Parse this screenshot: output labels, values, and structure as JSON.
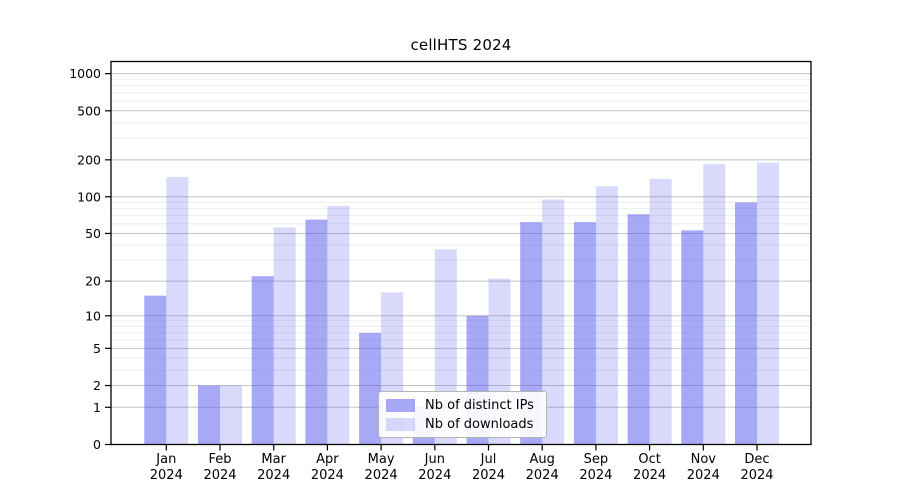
{
  "chart_data": {
    "type": "bar",
    "title": "cellHTS 2024",
    "xlabel": "",
    "ylabel": "",
    "categories": [
      "Jan",
      "Feb",
      "Mar",
      "Apr",
      "May",
      "Jun",
      "Jul",
      "Aug",
      "Sep",
      "Oct",
      "Nov",
      "Dec"
    ],
    "x_sub_label": "2024",
    "series": [
      {
        "name": "Nb of distinct IPs",
        "color": "rgba(80,84,240,0.50)",
        "values": [
          15,
          2,
          22,
          65,
          7,
          1,
          10,
          62,
          62,
          72,
          53,
          90
        ]
      },
      {
        "name": "Nb of downloads",
        "color": "rgba(80,84,240,0.22)",
        "values": [
          145,
          2,
          56,
          84,
          16,
          37,
          21,
          95,
          122,
          140,
          185,
          190
        ]
      }
    ],
    "y_ticks": [
      0,
      1,
      2,
      5,
      10,
      20,
      50,
      100,
      200,
      500,
      1000
    ],
    "y_scale": "log10(1+v)",
    "ylim": [
      0,
      1275
    ],
    "grid": true,
    "legend_position": "lower center",
    "colors": {
      "axis": "#000000",
      "grid_major": "#c4c4c4",
      "grid_minor": "#ededed",
      "text": "#000000"
    }
  }
}
